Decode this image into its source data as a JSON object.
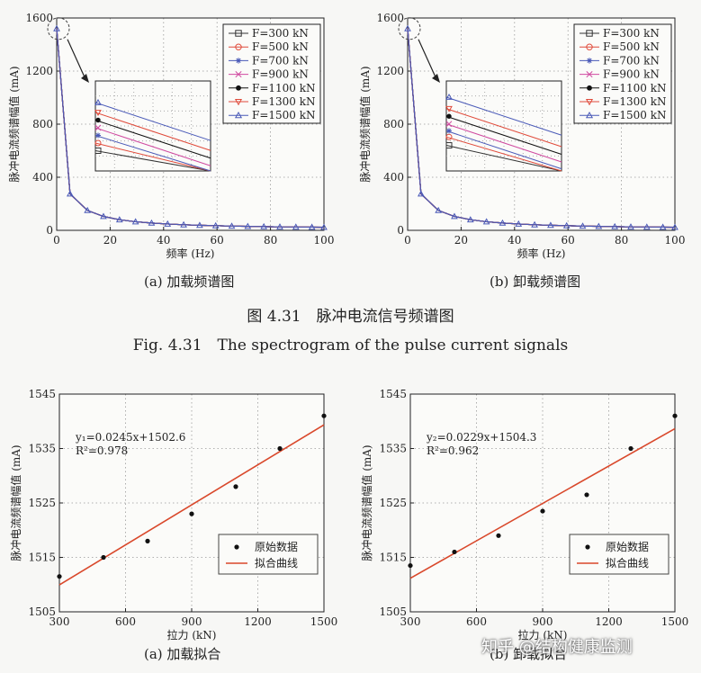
{
  "figure": {
    "caption_cn": "图 4.31　脉冲电流信号频谱图",
    "caption_en": "Fig. 4.31　The spectrogram of the pulse current signals"
  },
  "watermark": "知乎 @结构健康监测",
  "chart_data": [
    {
      "id": "spec-a",
      "type": "line",
      "subplot_caption": "(a)  加载频谱图",
      "xlabel": "频率 (Hz)",
      "ylabel": "脉冲电流频谱幅值 (mA)",
      "xlim": [
        0,
        100
      ],
      "ylim": [
        0,
        1600
      ],
      "xticks": [
        0,
        20,
        40,
        60,
        80,
        100
      ],
      "yticks": [
        0,
        400,
        800,
        1200,
        1600
      ],
      "grid": true,
      "legend_position": "top-right",
      "x": [
        0,
        5,
        11.5,
        17.5,
        23.5,
        29.5,
        35.5,
        41.5,
        47.5,
        53.5,
        59.5,
        65.5,
        71.5,
        77.5,
        83.5,
        89.5,
        95.5,
        100
      ],
      "y": [
        1520,
        275,
        150,
        105,
        80,
        65,
        55,
        48,
        42,
        38,
        35,
        32,
        30,
        28,
        26,
        25,
        24,
        23
      ],
      "series": [
        {
          "name": "F=300 kN",
          "color": "#333333",
          "marker": "square-open",
          "inset_offset": -3
        },
        {
          "name": "F=500 kN",
          "color": "#e04a3a",
          "marker": "circle-open",
          "inset_offset": -2
        },
        {
          "name": "F=700 kN",
          "color": "#4a5ab8",
          "marker": "star",
          "inset_offset": -1
        },
        {
          "name": "F=900 kN",
          "color": "#d04aa0",
          "marker": "x",
          "inset_offset": 0
        },
        {
          "name": "F=1100 kN",
          "color": "#111111",
          "marker": "dot",
          "inset_offset": 1
        },
        {
          "name": "F=1300 kN",
          "color": "#e04a3a",
          "marker": "triangle-down-open",
          "inset_offset": 2
        },
        {
          "name": "F=1500 kN",
          "color": "#4a5ab8",
          "marker": "triangle-up-open",
          "inset_offset": 3.3
        }
      ]
    },
    {
      "id": "spec-b",
      "type": "line",
      "subplot_caption": "(b)  卸载频谱图",
      "xlabel": "频率 (Hz)",
      "ylabel": "脉冲电流频谱幅值 (mA)",
      "xlim": [
        0,
        100
      ],
      "ylim": [
        0,
        1600
      ],
      "xticks": [
        0,
        20,
        40,
        60,
        80,
        100
      ],
      "yticks": [
        0,
        400,
        800,
        1200,
        1600
      ],
      "grid": true,
      "legend_position": "top-right",
      "x": [
        0,
        5,
        11.5,
        17.5,
        23.5,
        29.5,
        35.5,
        41.5,
        47.5,
        53.5,
        59.5,
        65.5,
        71.5,
        77.5,
        83.5,
        89.5,
        95.5,
        100
      ],
      "y": [
        1520,
        275,
        150,
        105,
        80,
        65,
        55,
        48,
        42,
        38,
        35,
        32,
        30,
        28,
        26,
        25,
        24,
        23
      ],
      "series": [
        {
          "name": "F=300 kN",
          "color": "#333333",
          "marker": "square-open",
          "inset_offset": -2.3
        },
        {
          "name": "F=500 kN",
          "color": "#e04a3a",
          "marker": "circle-open",
          "inset_offset": -1.2
        },
        {
          "name": "F=700 kN",
          "color": "#4a5ab8",
          "marker": "star",
          "inset_offset": -0.4
        },
        {
          "name": "F=900 kN",
          "color": "#d04aa0",
          "marker": "x",
          "inset_offset": 0.5
        },
        {
          "name": "F=1100 kN",
          "color": "#111111",
          "marker": "dot",
          "inset_offset": 1.5
        },
        {
          "name": "F=1300 kN",
          "color": "#e04a3a",
          "marker": "triangle-down-open",
          "inset_offset": 2.5
        },
        {
          "name": "F=1500 kN",
          "color": "#4a5ab8",
          "marker": "triangle-up-open",
          "inset_offset": 4
        }
      ]
    },
    {
      "id": "fit-a",
      "type": "scatter",
      "subplot_caption": "(a)  加载拟合",
      "xlabel": "拉力 (kN)",
      "ylabel": "脉冲电流频谱幅值 (mA)",
      "xlim": [
        300,
        1500
      ],
      "ylim": [
        1505,
        1545
      ],
      "xticks": [
        300,
        600,
        900,
        1200,
        1500
      ],
      "yticks": [
        1505,
        1515,
        1525,
        1535,
        1545
      ],
      "grid": true,
      "legend_position": "bottom-right",
      "equation": "y₁=0.0245x+1502.6",
      "r2": "R²=0.978",
      "fit": {
        "slope": 0.0245,
        "intercept": 1502.6
      },
      "points": {
        "x": [
          300,
          500,
          700,
          900,
          1100,
          1300,
          1500
        ],
        "y": [
          1511.5,
          1515,
          1518,
          1523,
          1528,
          1535,
          1541
        ]
      },
      "legend": [
        {
          "name": "原始数据",
          "color": "#111111",
          "kind": "point"
        },
        {
          "name": "拟合曲线",
          "color": "#d9482b",
          "kind": "line"
        }
      ]
    },
    {
      "id": "fit-b",
      "type": "scatter",
      "subplot_caption": "(b)  卸载拟合",
      "xlabel": "拉力 (kN)",
      "ylabel": "脉冲电流频谱幅值 (mA)",
      "xlim": [
        300,
        1500
      ],
      "ylim": [
        1505,
        1545
      ],
      "xticks": [
        300,
        600,
        900,
        1200,
        1500
      ],
      "yticks": [
        1505,
        1515,
        1525,
        1535,
        1545
      ],
      "grid": true,
      "legend_position": "bottom-right",
      "equation": "y₂=0.0229x+1504.3",
      "r2": "R²=0.962",
      "fit": {
        "slope": 0.0229,
        "intercept": 1504.3
      },
      "points": {
        "x": [
          300,
          500,
          700,
          900,
          1100,
          1300,
          1500
        ],
        "y": [
          1513.5,
          1516,
          1519,
          1523.5,
          1526.5,
          1535,
          1541
        ]
      },
      "legend": [
        {
          "name": "原始数据",
          "color": "#111111",
          "kind": "point"
        },
        {
          "name": "拟合曲线",
          "color": "#d9482b",
          "kind": "line"
        }
      ]
    }
  ]
}
